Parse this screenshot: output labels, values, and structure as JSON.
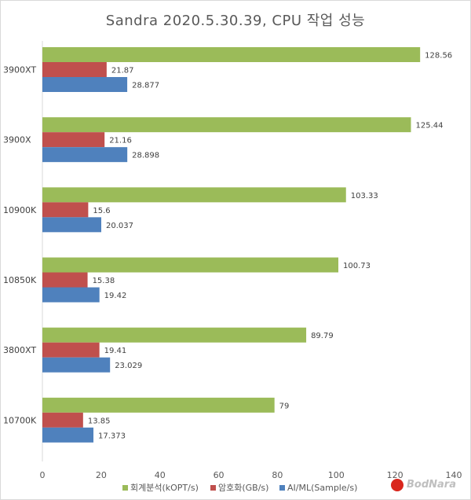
{
  "chart_data": {
    "type": "bar",
    "orientation": "horizontal",
    "title": "Sandra 2020.5.30.39, CPU 작업 성능",
    "categories": [
      "3900XT",
      "3900X",
      "10900K",
      "10850K",
      "3800XT",
      "10700K"
    ],
    "series": [
      {
        "name": "회계분석(kOPT/s)",
        "color": "#9bbb59",
        "values": [
          128.56,
          125.44,
          103.33,
          100.73,
          89.79,
          79
        ]
      },
      {
        "name": "암호화(GB/s)",
        "color": "#c0504d",
        "values": [
          21.87,
          21.16,
          15.6,
          15.38,
          19.41,
          13.85
        ]
      },
      {
        "name": "AI/ML(Sample/s)",
        "color": "#4f81bd",
        "values": [
          28.877,
          28.898,
          20.037,
          19.42,
          23.029,
          17.373
        ]
      }
    ],
    "data_labels": [
      [
        "128.56",
        "21.87",
        "28.877"
      ],
      [
        "125.44",
        "21.16",
        "28.898"
      ],
      [
        "103.33",
        "15.6",
        "20.037"
      ],
      [
        "100.73",
        "15.38",
        "19.42"
      ],
      [
        "89.79",
        "19.41",
        "23.029"
      ],
      [
        "79",
        "13.85",
        "17.373"
      ]
    ],
    "xlim": [
      0,
      140
    ],
    "xticks": [
      "0",
      "20",
      "40",
      "60",
      "80",
      "100",
      "120",
      "140"
    ],
    "grid": false,
    "legend_position": "bottom"
  },
  "watermark": {
    "text": "BodNara"
  }
}
